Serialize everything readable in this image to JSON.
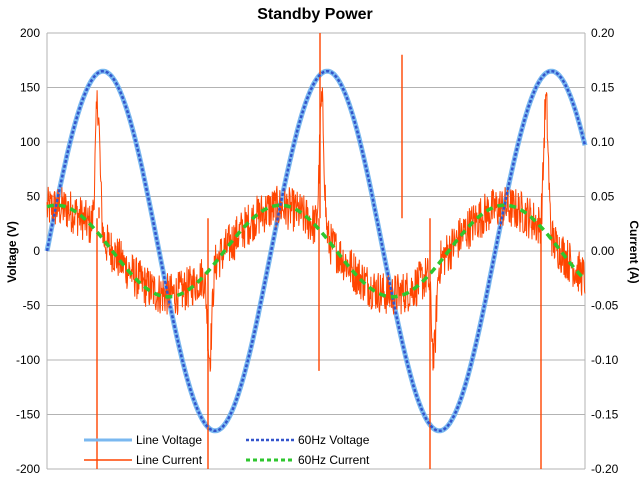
{
  "chart_data": {
    "type": "line",
    "title": "Standby Power",
    "xlabel": "",
    "ylabel": "Voltage (V)",
    "y2label": "Current (A)",
    "ylim": [
      -200,
      200
    ],
    "y2lim": [
      -0.2,
      0.2
    ],
    "y_ticks": [
      "200",
      "150",
      "100",
      "50",
      "0",
      "-50",
      "-100",
      "-150",
      "-200"
    ],
    "y2_ticks": [
      "0.20",
      "0.15",
      "0.10",
      "0.05",
      "0.00",
      "-0.05",
      "-0.10",
      "-0.15",
      "-0.20"
    ],
    "grid": true,
    "legend_position": "bottom-left",
    "series": [
      {
        "name": "Line Voltage",
        "axis": "left",
        "color": "#7ab8f0",
        "style": "solid-thick",
        "amplitude": 165,
        "frequency_hz": 60,
        "phase_deg": 0,
        "cycles_shown": 2.4
      },
      {
        "name": "Line Current",
        "axis": "right",
        "color": "#ff4500",
        "style": "noisy",
        "baseline_amplitude": 0.04,
        "noise": 0.02,
        "peak_current": 0.17,
        "spikes": [
          0.2,
          -0.2
        ]
      },
      {
        "name": "60Hz Voltage",
        "axis": "left",
        "color": "#3355cc",
        "style": "dotted",
        "amplitude": 165,
        "frequency_hz": 60,
        "phase_deg": 0
      },
      {
        "name": "60Hz Current",
        "axis": "right",
        "color": "#2ec62e",
        "style": "dashed",
        "amplitude": 0.042,
        "frequency_hz": 60,
        "phase_deg": 75
      }
    ]
  }
}
